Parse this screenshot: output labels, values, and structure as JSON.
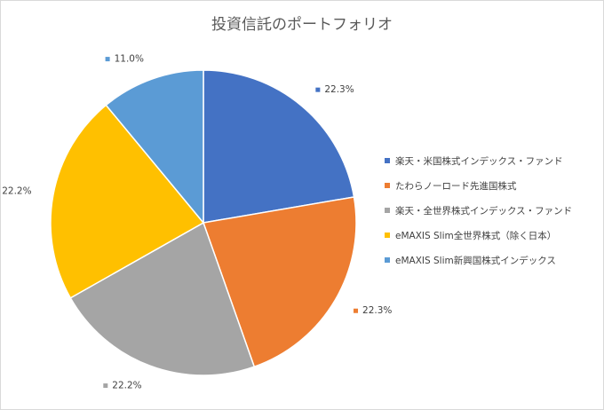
{
  "chart_data": {
    "type": "pie",
    "title": "投資信託のポートフォリオ",
    "slices": [
      {
        "label": "楽天・米国株式インデックス・ファンド",
        "value": 22.3,
        "data_label": "22.3%",
        "color": "#4472C4"
      },
      {
        "label": "たわらノーロード先進国株式",
        "value": 22.3,
        "data_label": "22.3%",
        "color": "#ED7D31"
      },
      {
        "label": "楽天・全世界株式インデックス・ファンド",
        "value": 22.2,
        "data_label": "22.2%",
        "color": "#A5A5A5"
      },
      {
        "label": "eMAXIS Slim全世界株式（除く日本）",
        "value": 22.2,
        "data_label": "22.2%",
        "color": "#FFC000"
      },
      {
        "label": "eMAXIS Slim新興国株式インデックス",
        "value": 11.0,
        "data_label": "11.0%",
        "color": "#5B9BD5"
      }
    ],
    "legend_position": "right",
    "start_angle": "12 o'clock",
    "direction": "clockwise"
  }
}
